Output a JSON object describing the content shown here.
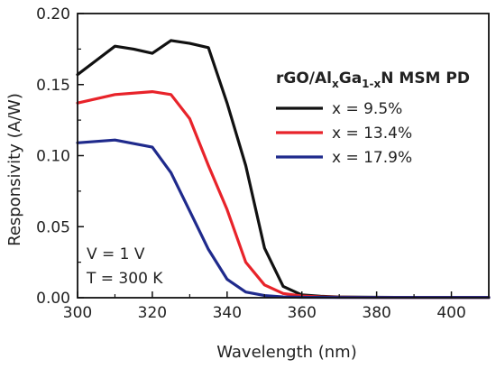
{
  "chart_data": {
    "type": "line",
    "xlabel": "Wavelength (nm)",
    "ylabel": "Responsivity (A/W)",
    "xlim": [
      300,
      410
    ],
    "ylim": [
      0,
      0.2
    ],
    "x_ticks": [
      "300",
      "320",
      "340",
      "360",
      "380",
      "400"
    ],
    "y_ticks": [
      "0.00",
      "0.05",
      "0.10",
      "0.15",
      "0.20"
    ],
    "legend_title": {
      "prefix": "rGO/Al",
      "sub1": "x",
      "mid": "Ga",
      "sub2": "1-x",
      "suffix": "N MSM PD"
    },
    "legend_position": "top-right",
    "annotations": [
      "V = 1 V",
      "T = 300 K"
    ],
    "series": [
      {
        "name": "x = 9.5%",
        "color": "#111111",
        "x": [
          300,
          305,
          310,
          315,
          320,
          325,
          330,
          335,
          340,
          345,
          350,
          355,
          360,
          365,
          370,
          380,
          390,
          400,
          410
        ],
        "y": [
          0.157,
          0.167,
          0.177,
          0.175,
          0.172,
          0.181,
          0.179,
          0.176,
          0.137,
          0.093,
          0.035,
          0.008,
          0.002,
          0.001,
          0.0005,
          0.0003,
          0.0002,
          0.0002,
          0.0002
        ]
      },
      {
        "name": "x = 13.4%",
        "color": "#e8232a",
        "x": [
          300,
          310,
          320,
          325,
          330,
          335,
          340,
          345,
          350,
          355,
          360,
          365,
          370,
          380,
          390,
          400,
          410
        ],
        "y": [
          0.137,
          0.143,
          0.145,
          0.143,
          0.126,
          0.093,
          0.062,
          0.025,
          0.009,
          0.003,
          0.0012,
          0.0006,
          0.0003,
          0.0002,
          0.0002,
          0.0002,
          0.0002
        ]
      },
      {
        "name": "x = 17.9%",
        "color": "#1f2a8c",
        "x": [
          300,
          310,
          320,
          325,
          330,
          335,
          340,
          345,
          350,
          355,
          360,
          370,
          380,
          390,
          400,
          410
        ],
        "y": [
          0.109,
          0.111,
          0.106,
          0.088,
          0.061,
          0.034,
          0.013,
          0.004,
          0.0015,
          0.0006,
          0.0003,
          0.0002,
          0.0002,
          0.0002,
          0.0002,
          0.0002
        ]
      }
    ]
  }
}
